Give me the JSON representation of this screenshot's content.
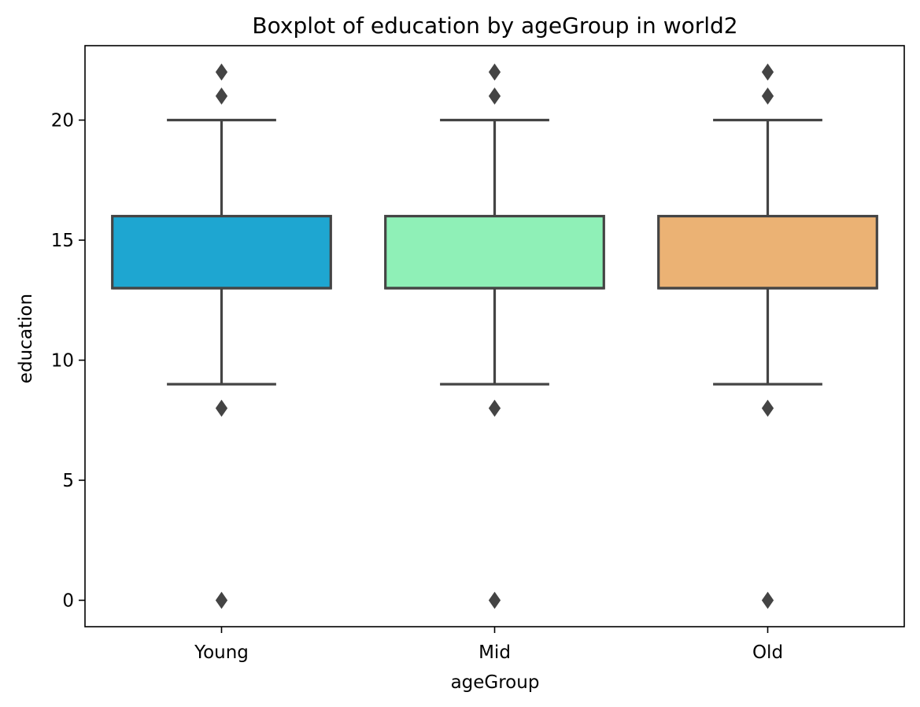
{
  "chart_data": {
    "type": "boxplot",
    "title": "Boxplot of education by ageGroup in world2",
    "xlabel": "ageGroup",
    "ylabel": "education",
    "categories": [
      "Young",
      "Mid",
      "Old"
    ],
    "ylim": [
      -1.1,
      23.1
    ],
    "yticks": [
      0,
      5,
      10,
      15,
      20
    ],
    "ytick_labels": [
      "0",
      "5",
      "10",
      "15",
      "20"
    ],
    "grid": false,
    "legend": "none",
    "boxes": [
      {
        "category": "Young",
        "whisker_low": 9,
        "q1": 13,
        "median": 13,
        "q3": 16,
        "whisker_high": 20,
        "outliers": [
          0,
          8,
          21,
          22
        ],
        "color": "#1ea6d1"
      },
      {
        "category": "Mid",
        "whisker_low": 9,
        "q1": 13,
        "median": 13,
        "q3": 16,
        "whisker_high": 20,
        "outliers": [
          0,
          8,
          21,
          22
        ],
        "color": "#8ff0b7"
      },
      {
        "category": "Old",
        "whisker_low": 9,
        "q1": 13,
        "median": 13,
        "q3": 16,
        "whisker_high": 20,
        "outliers": [
          0,
          8,
          21,
          22
        ],
        "color": "#ebb274"
      }
    ],
    "edge_color": "#444444",
    "frame_color": "#000000"
  }
}
